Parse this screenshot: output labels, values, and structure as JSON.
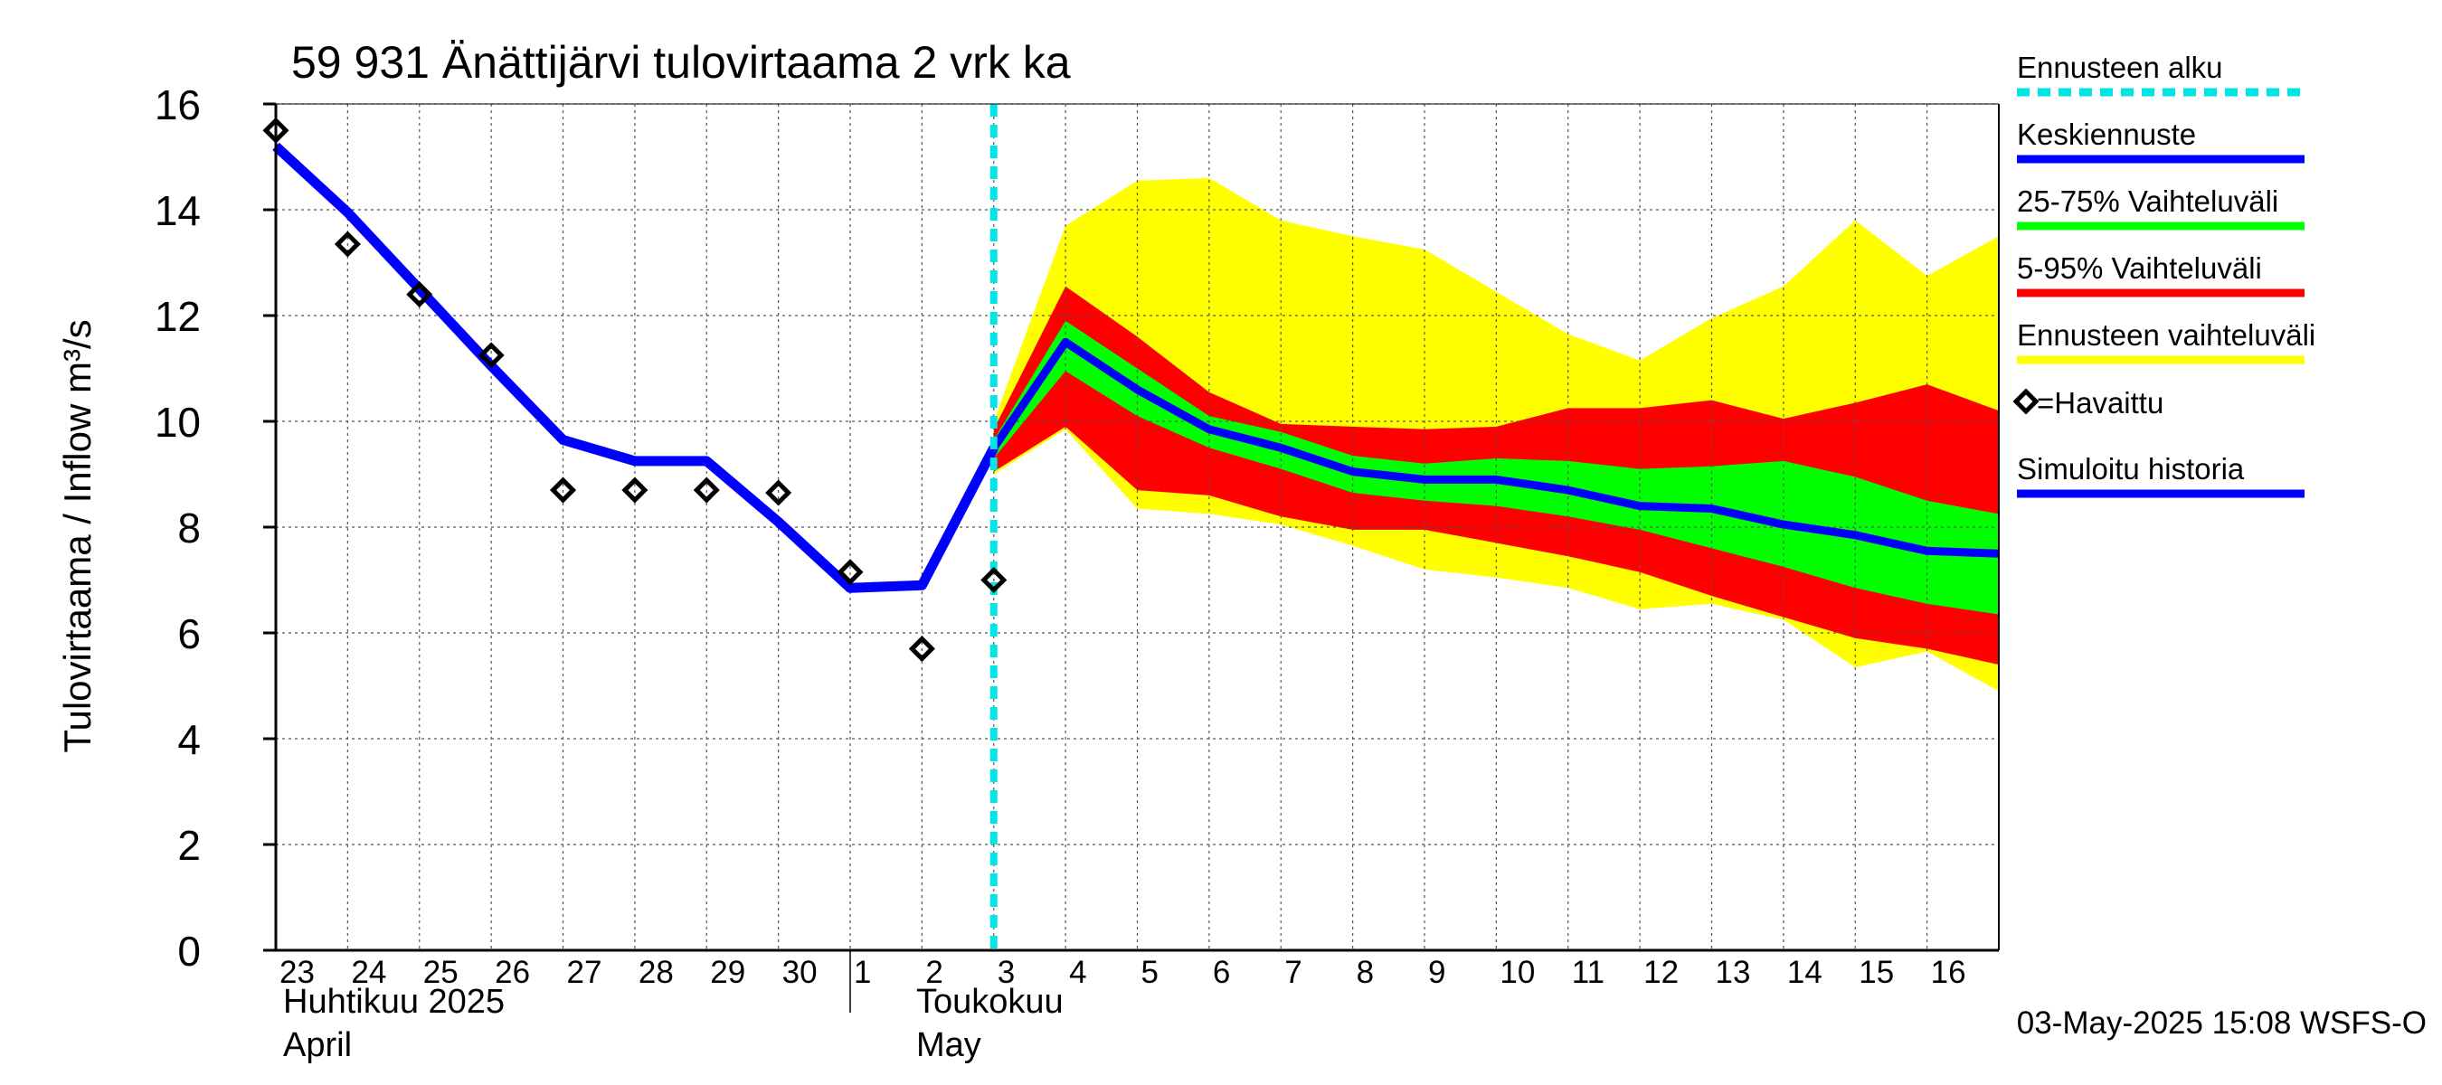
{
  "chart_data": {
    "type": "area",
    "title": "59 931 Änättijärvi tulovirtaama 2 vrk ka",
    "ylabel": "Tulovirtaama / Inflow    m³/s",
    "ylim": [
      0,
      16
    ],
    "yticks": [
      0,
      2,
      4,
      6,
      8,
      10,
      12,
      14,
      16
    ],
    "x_unit": "day index (0 = 23 Apr 2025)",
    "xlim": [
      0,
      24
    ],
    "x_tick_labels": [
      "23",
      "24",
      "25",
      "26",
      "27",
      "28",
      "29",
      "30",
      "1",
      "2",
      "3",
      "4",
      "5",
      "6",
      "7",
      "8",
      "9",
      "10",
      "11",
      "12",
      "13",
      "14",
      "15",
      "16"
    ],
    "month_labels": [
      {
        "line1": "Huhtikuu  2025",
        "line2": "April"
      },
      {
        "line1": "Toukokuu",
        "line2": "May"
      }
    ],
    "grid": true,
    "forecast_start": 10,
    "timestamp": "03-May-2025 15:08 WSFS-O",
    "colors": {
      "forecast_start": "#00e5e5",
      "median": "#0000ff",
      "p25_75": "#00ff00",
      "p5_95": "#ff0000",
      "range": "#ffff00",
      "observed": "#000000",
      "history": "#0000ff"
    },
    "legend": [
      {
        "key": "forecast_start",
        "label": "Ennusteen alku",
        "style": "dashed"
      },
      {
        "key": "median",
        "label": "Keskiennuste",
        "style": "line"
      },
      {
        "key": "p25_75",
        "label": "25-75% Vaihteluväli",
        "style": "line"
      },
      {
        "key": "p5_95",
        "label": "5-95% Vaihteluväli",
        "style": "line"
      },
      {
        "key": "range",
        "label": "Ennusteen vaihteluväli",
        "style": "line"
      },
      {
        "key": "observed",
        "label": "=Havaittu",
        "style": "marker"
      },
      {
        "key": "history",
        "label": "Simuloitu historia",
        "style": "line"
      }
    ],
    "observed": [
      {
        "x": 0,
        "y": 15.5
      },
      {
        "x": 1,
        "y": 13.35
      },
      {
        "x": 2,
        "y": 12.4
      },
      {
        "x": 3,
        "y": 11.25
      },
      {
        "x": 4,
        "y": 8.7
      },
      {
        "x": 5,
        "y": 8.7
      },
      {
        "x": 6,
        "y": 8.7
      },
      {
        "x": 7,
        "y": 8.65
      },
      {
        "x": 8,
        "y": 7.15
      },
      {
        "x": 9,
        "y": 5.7
      },
      {
        "x": 10,
        "y": 7.0
      }
    ],
    "history": {
      "x": [
        0,
        1,
        2,
        3,
        4,
        5,
        6,
        7,
        8,
        9,
        10
      ],
      "y": [
        15.2,
        13.95,
        12.5,
        11.05,
        9.65,
        9.25,
        9.25,
        8.1,
        6.85,
        6.9,
        9.5
      ]
    },
    "forecast": {
      "x": [
        10,
        11,
        12,
        13,
        14,
        15,
        16,
        17,
        18,
        19,
        20,
        21,
        22,
        23,
        24
      ],
      "median": [
        9.5,
        11.5,
        10.6,
        9.85,
        9.5,
        9.05,
        8.9,
        8.9,
        8.7,
        8.4,
        8.35,
        8.05,
        7.85,
        7.55,
        7.5
      ],
      "p25": [
        9.3,
        10.95,
        10.1,
        9.5,
        9.1,
        8.65,
        8.5,
        8.4,
        8.2,
        7.95,
        7.6,
        7.25,
        6.85,
        6.55,
        6.35
      ],
      "p75": [
        9.65,
        11.9,
        11.0,
        10.1,
        9.8,
        9.35,
        9.2,
        9.3,
        9.25,
        9.1,
        9.15,
        9.25,
        8.95,
        8.5,
        8.25
      ],
      "p5": [
        9.05,
        9.9,
        8.7,
        8.6,
        8.2,
        7.95,
        7.95,
        7.7,
        7.45,
        7.15,
        6.7,
        6.3,
        5.9,
        5.7,
        5.4
      ],
      "p95": [
        9.85,
        12.55,
        11.6,
        10.55,
        9.95,
        9.9,
        9.85,
        9.9,
        10.25,
        10.25,
        10.4,
        10.05,
        10.35,
        10.7,
        10.2
      ],
      "min": [
        9.0,
        9.85,
        8.35,
        8.25,
        8.05,
        7.65,
        7.2,
        7.05,
        6.85,
        6.45,
        6.55,
        6.25,
        5.35,
        5.65,
        4.9
      ],
      "max": [
        10.0,
        13.7,
        14.55,
        14.6,
        13.8,
        13.5,
        13.25,
        12.45,
        11.65,
        11.15,
        11.95,
        12.55,
        13.8,
        12.75,
        13.5
      ]
    }
  }
}
